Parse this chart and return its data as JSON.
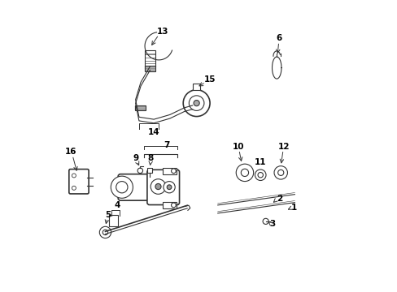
{
  "bg_color": "#ffffff",
  "line_color": "#333333",
  "label_color": "#000000",
  "fig_width": 4.89,
  "fig_height": 3.6,
  "dpi": 100
}
